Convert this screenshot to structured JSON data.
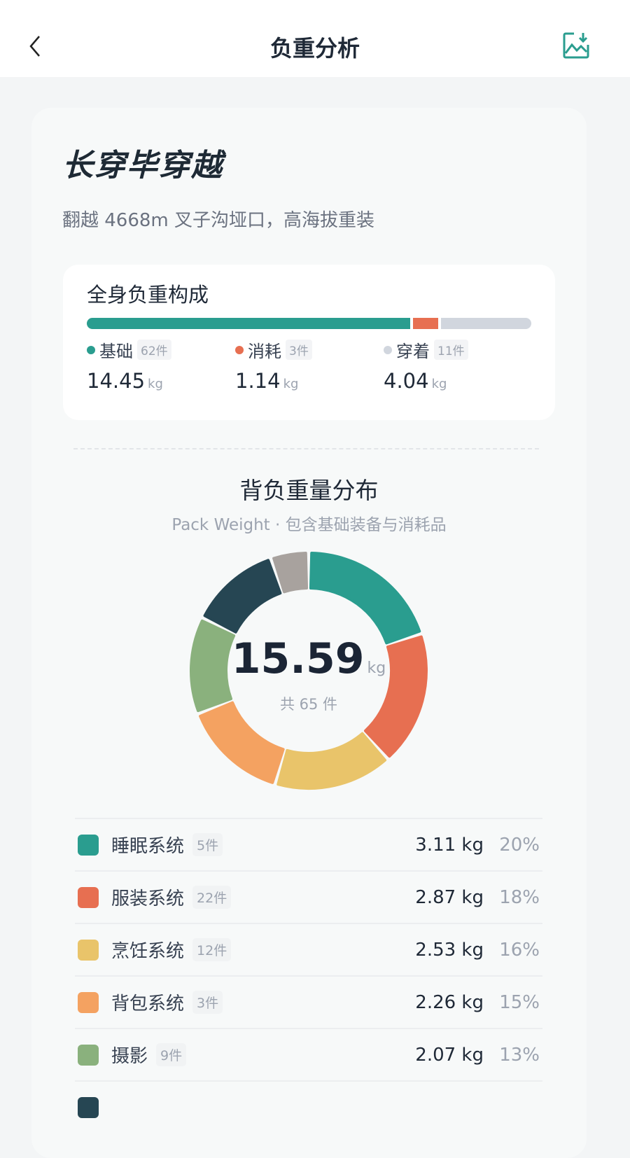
{
  "nav": {
    "title": "负重分析",
    "back_icon": "chevron-left-icon",
    "export_icon": "image-download-icon",
    "accent": "#2a9d8f"
  },
  "trip": {
    "title": "长穿毕穿越",
    "subtitle": "翻越 4668m 叉子沟垭口，高海拔重装"
  },
  "composition": {
    "title": "全身负重构成",
    "unit": "kg",
    "items": [
      {
        "label": "基础",
        "count": "62件",
        "weight": "14.45",
        "color": "#2a9d8f"
      },
      {
        "label": "消耗",
        "count": "3件",
        "weight": "1.14",
        "color": "#e76f51"
      },
      {
        "label": "穿着",
        "count": "11件",
        "weight": "4.04",
        "color": "#d1d6de"
      }
    ]
  },
  "distribution": {
    "title": "背负重量分布",
    "subtitle": "Pack Weight · 包含基础装备与消耗品",
    "total": "15.59",
    "unit": "kg",
    "count_text": "共 65 件"
  },
  "chart_data": {
    "type": "pie",
    "variant": "donut",
    "total": 15.59,
    "unit": "kg",
    "slices": [
      {
        "name": "睡眠系统",
        "count": "5件",
        "value": 3.11,
        "weight": "3.11 kg",
        "percent": "20%",
        "color": "#2a9d8f"
      },
      {
        "name": "服装系统",
        "count": "22件",
        "value": 2.87,
        "weight": "2.87 kg",
        "percent": "18%",
        "color": "#e76f51"
      },
      {
        "name": "烹饪系统",
        "count": "12件",
        "value": 2.53,
        "weight": "2.53 kg",
        "percent": "16%",
        "color": "#e9c46a"
      },
      {
        "name": "背包系统",
        "count": "3件",
        "value": 2.26,
        "weight": "2.26 kg",
        "percent": "15%",
        "color": "#f4a261"
      },
      {
        "name": "摄影",
        "count": "9件",
        "value": 2.07,
        "weight": "2.07 kg",
        "percent": "13%",
        "color": "#8ab17d"
      },
      {
        "value": 1.94,
        "color": "#264653"
      },
      {
        "value": 0.81,
        "color": "#a8a29e"
      }
    ]
  }
}
